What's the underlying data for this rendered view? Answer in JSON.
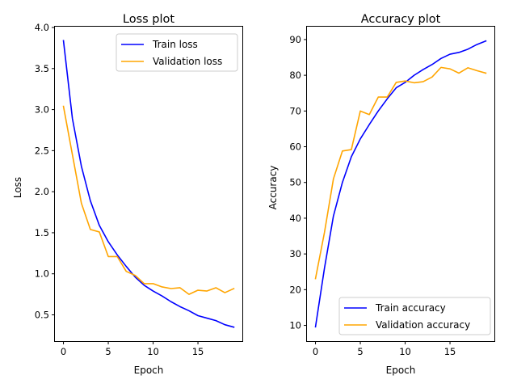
{
  "chart_data": [
    {
      "type": "line",
      "title": "Loss plot",
      "xlabel": "Epoch",
      "ylabel": "Loss",
      "xlim": [
        -0.95,
        19.95
      ],
      "ylim": [
        0.18,
        4.01
      ],
      "xticks": [
        0,
        5,
        10,
        15
      ],
      "yticks": [
        0.5,
        1.0,
        1.5,
        2.0,
        2.5,
        3.0,
        3.5,
        4.0
      ],
      "ytick_labels": [
        "0.5",
        "1.0",
        "1.5",
        "2.0",
        "2.5",
        "3.0",
        "3.5",
        "4.0"
      ],
      "legend": "top-right",
      "x": [
        0,
        1,
        2,
        3,
        4,
        5,
        6,
        7,
        8,
        9,
        10,
        11,
        12,
        13,
        14,
        15,
        16,
        17,
        18,
        19
      ],
      "series": [
        {
          "name": "Train loss",
          "color": "#0000ff",
          "values": [
            3.84,
            2.89,
            2.31,
            1.89,
            1.59,
            1.39,
            1.23,
            1.09,
            0.96,
            0.86,
            0.79,
            0.73,
            0.66,
            0.6,
            0.55,
            0.49,
            0.46,
            0.43,
            0.38,
            0.35
          ]
        },
        {
          "name": "Validation loss",
          "color": "#ffa500",
          "values": [
            3.04,
            2.45,
            1.86,
            1.54,
            1.51,
            1.21,
            1.21,
            1.03,
            0.98,
            0.88,
            0.88,
            0.84,
            0.82,
            0.83,
            0.75,
            0.8,
            0.79,
            0.83,
            0.77,
            0.82
          ]
        }
      ]
    },
    {
      "type": "line",
      "title": "Accuracy plot",
      "xlabel": "Epoch",
      "ylabel": "Accuracy",
      "xlim": [
        -0.95,
        19.95
      ],
      "ylim": [
        5.6,
        93.6
      ],
      "xticks": [
        0,
        5,
        10,
        15
      ],
      "yticks": [
        10,
        20,
        30,
        40,
        50,
        60,
        70,
        80,
        90
      ],
      "ytick_labels": [
        "10",
        "20",
        "30",
        "40",
        "50",
        "60",
        "70",
        "80",
        "90"
      ],
      "legend": "bottom-right",
      "x": [
        0,
        1,
        2,
        3,
        4,
        5,
        6,
        7,
        8,
        9,
        10,
        11,
        12,
        13,
        14,
        15,
        16,
        17,
        18,
        19
      ],
      "series": [
        {
          "name": "Train accuracy",
          "color": "#0000ff",
          "values": [
            9.6,
            26.0,
            40.6,
            50.0,
            57.2,
            62.2,
            66.2,
            70.0,
            73.4,
            76.5,
            78.0,
            80.0,
            81.6,
            83.0,
            84.7,
            85.9,
            86.4,
            87.3,
            88.6,
            89.6
          ]
        },
        {
          "name": "Validation accuracy",
          "color": "#ffa500",
          "values": [
            23.1,
            36.0,
            51.0,
            58.8,
            59.2,
            70.0,
            69.0,
            73.9,
            73.9,
            78.0,
            78.4,
            77.9,
            78.2,
            79.5,
            82.2,
            81.8,
            80.6,
            82.1,
            81.3,
            80.6
          ]
        }
      ]
    }
  ]
}
